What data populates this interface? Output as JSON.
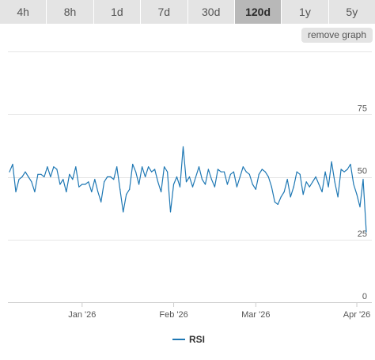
{
  "toolbar": {
    "ranges": [
      "4h",
      "8h",
      "1d",
      "7d",
      "30d",
      "120d",
      "1y",
      "5y"
    ],
    "active_range": "120d",
    "remove_graph_label": "remove graph"
  },
  "legend": {
    "label": "RSI"
  },
  "colors": {
    "line": "#1f78b4",
    "tab_bg": "#e4e4e4",
    "tab_active_bg": "#b8b8b8",
    "grid": "#e6e6e6"
  },
  "chart_data": {
    "type": "line",
    "title": "",
    "xlabel": "",
    "ylabel": "",
    "ylim": [
      0,
      100
    ],
    "y_ticks": [
      0,
      25,
      50,
      75
    ],
    "x_ticks": [
      "Jan '26",
      "Feb '26",
      "Mar '26",
      "Apr '26"
    ],
    "x_tick_index": [
      23,
      52,
      78,
      110
    ],
    "series": [
      {
        "name": "RSI",
        "values": [
          52,
          55,
          44,
          49,
          50,
          52,
          50,
          48,
          44,
          51,
          51,
          50,
          54,
          50,
          54,
          53,
          47,
          49,
          44,
          51,
          49,
          54,
          46,
          47,
          47,
          48,
          44,
          49,
          44,
          40,
          48,
          50,
          50,
          49,
          54,
          45,
          36,
          43,
          45,
          55,
          52,
          47,
          54,
          50,
          54,
          52,
          53,
          48,
          44,
          54,
          52,
          36,
          47,
          50,
          46,
          62,
          48,
          50,
          46,
          50,
          54,
          49,
          47,
          53,
          49,
          46,
          53,
          52,
          52,
          47,
          51,
          52,
          46,
          50,
          54,
          52,
          51,
          47,
          45,
          51,
          53,
          52,
          50,
          46,
          40,
          39,
          42,
          44,
          49,
          42,
          46,
          52,
          51,
          43,
          48,
          46,
          48,
          50,
          47,
          44,
          52,
          46,
          56,
          48,
          42,
          53,
          52,
          53,
          55,
          47,
          43,
          38,
          49,
          28
        ]
      }
    ],
    "grid": true,
    "legend_position": "bottom-center"
  }
}
